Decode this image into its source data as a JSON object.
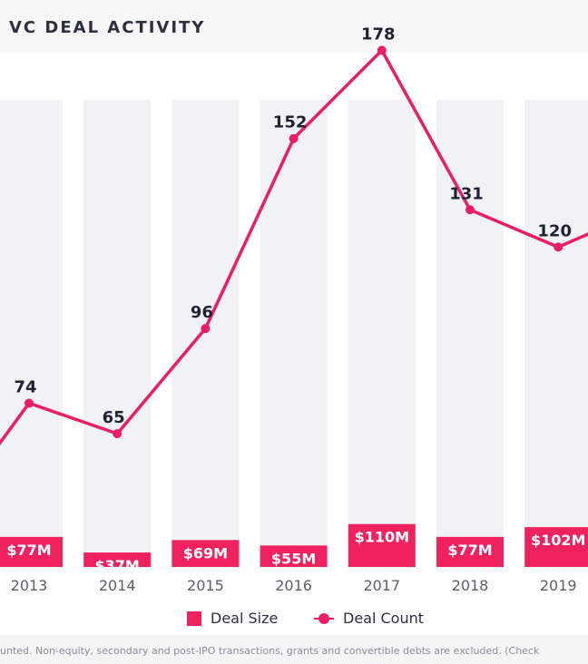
{
  "header": {
    "title": "VC DEAL ACTIVITY"
  },
  "colors": {
    "accent": "#e91e63",
    "bar": "#f0215f",
    "column_bg": "#f1f2f4",
    "text_dark": "#1f2233",
    "axis_text": "#5b5e66"
  },
  "legend": {
    "deal_size_label": "Deal Size",
    "deal_count_label": "Deal Count"
  },
  "footnote": {
    "text": "unted. Non-equity, secondary and post-IPO transactions, grants and convertible debts are excluded. (Check"
  },
  "chart_data": {
    "type": "bar+line",
    "categories": [
      "2013",
      "2014",
      "2015",
      "2016",
      "2017",
      "2018",
      "2019"
    ],
    "series": [
      {
        "name": "Deal Size",
        "type": "bar",
        "values": [
          77,
          37,
          69,
          55,
          110,
          77,
          102
        ],
        "labels": [
          "$77M",
          "$37M",
          "$69M",
          "$55M",
          "$110M",
          "$77M",
          "$102M"
        ],
        "unit": "$M"
      },
      {
        "name": "Deal Count",
        "type": "line",
        "values": [
          74,
          65,
          96,
          152,
          178,
          131,
          120
        ],
        "labels": [
          "74",
          "65",
          "96",
          "152",
          "178",
          "131",
          "120"
        ]
      }
    ],
    "notes": "Line continues off the left edge (below 74) and off the right edge (above 120); those values are cropped and not shown.",
    "legend_position": "bottom-center",
    "grid": false
  }
}
